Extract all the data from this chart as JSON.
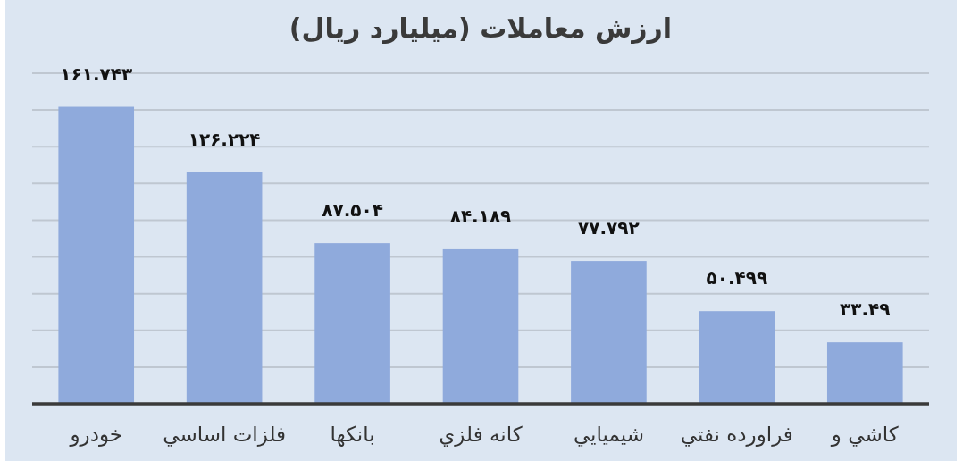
{
  "chart_data": {
    "type": "bar",
    "title": "ارزش معاملات (میلیارد ریال)",
    "categories": [
      "خودرو",
      "فلزات اساسي",
      "بانکها",
      "کانه فلزي",
      "شيميايي",
      "فراورده نفتي",
      "کاشي و"
    ],
    "values": [
      161.743,
      126.224,
      87.504,
      84.189,
      77.792,
      50.499,
      33.49
    ],
    "value_labels": [
      "۱۶۱.۷۴۳",
      "۱۲۶.۲۲۴",
      "۸۷.۵۰۴",
      "۸۴.۱۸۹",
      "۷۷.۷۹۲",
      "۵۰.۴۹۹",
      "۳۳.۴۹"
    ],
    "color": "#8faadc",
    "ylim": [
      0,
      180
    ],
    "yticks": [
      {
        "value": 0,
        "label": null
      },
      {
        "value": 20,
        "label": null
      },
      {
        "value": 40,
        "label": null
      },
      {
        "value": 60,
        "label": null
      },
      {
        "value": 80,
        "label": null
      },
      {
        "value": 100,
        "label": null
      },
      {
        "value": 120,
        "label": null
      },
      {
        "value": 140,
        "label": null
      },
      {
        "value": 160,
        "label": null
      },
      {
        "value": 180,
        "label": null
      }
    ],
    "grid": "y",
    "tick_labels": "x"
  }
}
